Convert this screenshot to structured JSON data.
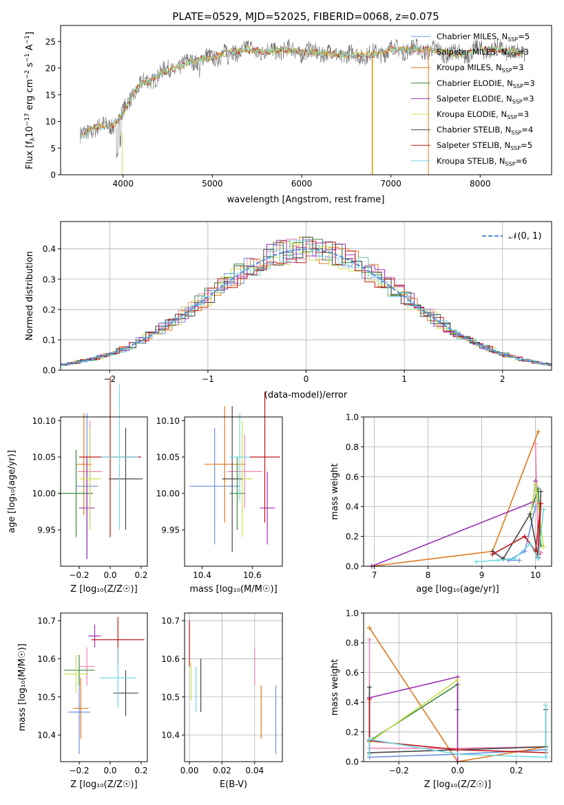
{
  "figure_title": "PLATE=0529, MJD=52025, FIBERID=0068, z=0.075",
  "colors": {
    "Chabrier MILES": "#6a8fe0",
    "Salpeter MILES": "#ee82b8",
    "Kroupa MILES": "#e0781c",
    "Chabrier ELODIE": "#3a8a3a",
    "Salpeter ELODIE": "#9b30b4",
    "Kroupa ELODIE": "#c8e050",
    "Chabrier STELIB": "#444444",
    "Salpeter STELIB": "#c01414",
    "Kroupa STELIB": "#70d8e0",
    "normal": "#5b8fd6"
  },
  "chart_data": [
    {
      "id": "spectrum",
      "type": "line",
      "title": "PLATE=0529, MJD=52025, FIBERID=0068, z=0.075",
      "xlabel": "wavelength [Angstrom, rest frame]",
      "ylabel_main": "Flux [f",
      "ylabel_sub": "λ",
      "ylabel_rest": "10",
      "ylabel_exp1": "−17",
      "ylabel_mid": " erg cm",
      "ylabel_exp2": "−2",
      "ylabel_mid2": " s",
      "ylabel_exp3": "−1",
      "ylabel_mid3": " A",
      "ylabel_exp4": "−1",
      "ylabel_end": "]",
      "xlim": [
        3300,
        8800
      ],
      "ylim": [
        0,
        28
      ],
      "xticks": [
        4000,
        5000,
        6000,
        7000,
        8000
      ],
      "yticks": [
        0,
        5,
        10,
        15,
        20,
        25
      ],
      "envelope_x": [
        3520,
        3600,
        3700,
        3800,
        3900,
        4000,
        4100,
        4200,
        4300,
        4400,
        4600,
        4800,
        5000,
        5200,
        5400,
        5600,
        5800,
        6000,
        6200,
        6400,
        6600,
        6800,
        7000,
        7200,
        7400,
        7600,
        7800,
        8000,
        8200,
        8400,
        8500
      ],
      "envelope_y": [
        7,
        8,
        9,
        9,
        9.5,
        11.5,
        15,
        17,
        17.5,
        19,
        20,
        21.5,
        22,
        23,
        23.5,
        23,
        23.5,
        23,
        23,
        22.5,
        22.5,
        22.5,
        23.5,
        23.5,
        23.5,
        23,
        22.5,
        23.5,
        23.5,
        23,
        22.5
      ],
      "legend": [
        {
          "pre": "Chabrier MILES, N",
          "sub": "SSP",
          "post": "=5"
        },
        {
          "pre": "Salpeter MILES, N",
          "sub": "SSP",
          "post": "=3"
        },
        {
          "pre": "Kroupa MILES, N",
          "sub": "SSP",
          "post": "=3"
        },
        {
          "pre": "Chabrier ELODIE, N",
          "sub": "SSP",
          "post": "=3"
        },
        {
          "pre": "Salpeter ELODIE, N",
          "sub": "SSP",
          "post": "=3"
        },
        {
          "pre": "Kroupa ELODIE, N",
          "sub": "SSP",
          "post": "=3"
        },
        {
          "pre": "Chabrier STELIB, N",
          "sub": "SSP",
          "post": "=4"
        },
        {
          "pre": "Salpeter STELIB, N",
          "sub": "SSP",
          "post": "=5"
        },
        {
          "pre": "Kroupa STELIB, N",
          "sub": "SSP",
          "post": "=6"
        }
      ]
    },
    {
      "id": "residuals",
      "type": "line",
      "xlabel": "(data-model)/error",
      "ylabel": "Normed distribution",
      "xlim": [
        -2.5,
        2.5
      ],
      "ylim": [
        0,
        0.49
      ],
      "xticks": [
        -2,
        -1,
        0,
        1,
        2
      ],
      "yticks": [
        0.0,
        0.1,
        0.2,
        0.3,
        0.4
      ],
      "grid": true,
      "legend_label": "𝒩(0, 1)",
      "legend_placement": "top-right",
      "bin_width": 0.1
    },
    {
      "id": "age_vs_Z",
      "type": "scatter",
      "xlabel": "Z [log₁₀(Z/Z☉)]",
      "ylabel": "age  [log₁₀(age/yr)]",
      "xlim": [
        -0.32,
        0.24
      ],
      "ylim": [
        9.9,
        10.105
      ],
      "xticks": [
        -0.2,
        0.0,
        0.2
      ],
      "yticks": [
        9.95,
        10.0,
        10.05,
        10.1
      ],
      "points": [
        {
          "model": "Chabrier MILES",
          "x": -0.15,
          "xerr": 0.07,
          "y": 10.01,
          "yerr": 0.1
        },
        {
          "model": "Salpeter MILES",
          "x": -0.13,
          "xerr": 0.08,
          "y": 10.03,
          "yerr": 0.07
        },
        {
          "model": "Kroupa MILES",
          "x": -0.17,
          "xerr": 0.05,
          "y": 10.04,
          "yerr": 0.07
        },
        {
          "model": "Chabrier ELODIE",
          "x": -0.22,
          "xerr": 0.11,
          "y": 10.0,
          "yerr": 0.06
        },
        {
          "model": "Salpeter ELODIE",
          "x": -0.15,
          "xerr": 0.05,
          "y": 9.98,
          "yerr": 0.07
        },
        {
          "model": "Kroupa ELODIE",
          "x": -0.13,
          "xerr": 0.07,
          "y": 10.02,
          "yerr": 0.07
        },
        {
          "model": "Chabrier STELIB",
          "x": 0.1,
          "xerr": 0.11,
          "y": 10.02,
          "yerr": 0.07
        },
        {
          "model": "Salpeter STELIB",
          "x": 0.0,
          "xerr": 0.2,
          "y": 10.05,
          "yerr": 0.11
        },
        {
          "model": "Kroupa STELIB",
          "x": 0.06,
          "xerr": 0.12,
          "y": 10.05,
          "yerr": 0.1
        }
      ]
    },
    {
      "id": "age_vs_mass",
      "type": "scatter",
      "xlabel": "mass [log₁₀(M/M☉)]",
      "xlim": [
        10.33,
        10.72
      ],
      "ylim": [
        9.9,
        10.105
      ],
      "xticks": [
        10.4,
        10.6
      ],
      "yticks": [
        9.95,
        10.0,
        10.05,
        10.1
      ],
      "points": [
        {
          "model": "Chabrier MILES",
          "x": 10.45,
          "xerr": 0.1,
          "y": 10.01,
          "yerr": 0.08
        },
        {
          "model": "Salpeter MILES",
          "x": 10.57,
          "xerr": 0.07,
          "y": 10.03,
          "yerr": 0.05
        },
        {
          "model": "Kroupa MILES",
          "x": 10.49,
          "xerr": 0.08,
          "y": 10.04,
          "yerr": 0.08
        },
        {
          "model": "Chabrier ELODIE",
          "x": 10.54,
          "xerr": 0.03,
          "y": 10.0,
          "yerr": 0.05
        },
        {
          "model": "Salpeter ELODIE",
          "x": 10.66,
          "xerr": 0.03,
          "y": 9.98,
          "yerr": 0.05
        },
        {
          "model": "Kroupa ELODIE",
          "x": 10.56,
          "xerr": 0.04,
          "y": 10.02,
          "yerr": 0.08
        },
        {
          "model": "Chabrier STELIB",
          "x": 10.52,
          "xerr": 0.04,
          "y": 10.02,
          "yerr": 0.1
        },
        {
          "model": "Salpeter STELIB",
          "x": 10.65,
          "xerr": 0.06,
          "y": 10.05,
          "yerr": 0.09
        },
        {
          "model": "Kroupa STELIB",
          "x": 10.55,
          "xerr": 0.04,
          "y": 10.05,
          "yerr": 0.06
        }
      ]
    },
    {
      "id": "weight_vs_age",
      "type": "line",
      "xlabel": "age  [log₁₀(age/yr)]",
      "ylabel": "mass weight",
      "xlim": [
        6.8,
        10.3
      ],
      "ylim": [
        0,
        1
      ],
      "xticks": [
        7,
        8,
        9,
        10
      ],
      "yticks": [
        0.0,
        0.2,
        0.4,
        0.6,
        0.8,
        1.0
      ],
      "grid": true,
      "series": [
        {
          "model": "Chabrier MILES",
          "x": [
            9.7,
            9.5,
            9.8,
            10.0
          ],
          "y": [
            0.04,
            0.04,
            0.1,
            0.4
          ]
        },
        {
          "model": "Salpeter MILES",
          "x": [
            10.0,
            10.05,
            10.1
          ],
          "y": [
            0.82,
            0.1,
            0.09
          ]
        },
        {
          "model": "Kroupa MILES",
          "x": [
            6.95,
            9.2,
            10.05
          ],
          "y": [
            0.0,
            0.1,
            0.9
          ]
        },
        {
          "model": "Chabrier ELODIE",
          "x": [
            9.9,
            10.05,
            10.1
          ],
          "y": [
            0.35,
            0.52,
            0.14
          ]
        },
        {
          "model": "Salpeter ELODIE",
          "x": [
            6.95,
            9.95,
            10.0
          ],
          "y": [
            0.0,
            0.43,
            0.57
          ]
        },
        {
          "model": "Kroupa ELODIE",
          "x": [
            9.9,
            10.0,
            10.15
          ],
          "y": [
            0.33,
            0.55,
            0.13
          ]
        },
        {
          "model": "Chabrier STELIB",
          "x": [
            9.2,
            9.4,
            9.9,
            10.05,
            10.1
          ],
          "y": [
            0.1,
            0.05,
            0.35,
            0.06,
            0.5
          ]
        },
        {
          "model": "Salpeter STELIB",
          "x": [
            9.2,
            9.8,
            10.0,
            10.1,
            10.05
          ],
          "y": [
            0.08,
            0.2,
            0.1,
            0.42,
            0.08
          ]
        },
        {
          "model": "Kroupa STELIB",
          "x": [
            8.9,
            9.3,
            9.6,
            9.9,
            10.05,
            10.15
          ],
          "y": [
            0.03,
            0.04,
            0.05,
            0.15,
            0.05,
            0.38
          ]
        }
      ]
    },
    {
      "id": "mass_vs_Z",
      "type": "scatter",
      "xlabel": "Z [log₁₀(Z/Z☉)]",
      "ylabel": "mass [log₁₀(M/M☉)]",
      "xlim": [
        -0.32,
        0.24
      ],
      "ylim": [
        10.33,
        10.72
      ],
      "xticks": [
        -0.2,
        0.0,
        0.2
      ],
      "yticks": [
        10.4,
        10.5,
        10.6,
        10.7
      ],
      "points": [
        {
          "model": "Chabrier MILES",
          "x": -0.2,
          "xerr": 0.07,
          "y": 10.46,
          "yerr": 0.11
        },
        {
          "model": "Salpeter MILES",
          "x": -0.15,
          "xerr": 0.05,
          "y": 10.58,
          "yerr": 0.05
        },
        {
          "model": "Kroupa MILES",
          "x": -0.19,
          "xerr": 0.05,
          "y": 10.47,
          "yerr": 0.08
        },
        {
          "model": "Chabrier ELODIE",
          "x": -0.2,
          "xerr": 0.1,
          "y": 10.57,
          "yerr": 0.04
        },
        {
          "model": "Salpeter ELODIE",
          "x": -0.1,
          "xerr": 0.04,
          "y": 10.66,
          "yerr": 0.03
        },
        {
          "model": "Kroupa ELODIE",
          "x": -0.22,
          "xerr": 0.08,
          "y": 10.56,
          "yerr": 0.05
        },
        {
          "model": "Chabrier STELIB",
          "x": 0.1,
          "xerr": 0.08,
          "y": 10.51,
          "yerr": 0.06
        },
        {
          "model": "Salpeter STELIB",
          "x": 0.05,
          "xerr": 0.17,
          "y": 10.65,
          "yerr": 0.06
        },
        {
          "model": "Kroupa STELIB",
          "x": 0.05,
          "xerr": 0.12,
          "y": 10.55,
          "yerr": 0.08
        }
      ]
    },
    {
      "id": "mass_vs_ebv",
      "type": "scatter",
      "xlabel": "E(B-V)",
      "xlim": [
        -0.003,
        0.057
      ],
      "ylim": [
        10.33,
        10.72
      ],
      "xticks": [
        0.0,
        0.02,
        0.04
      ],
      "yticks": [
        10.4,
        10.5,
        10.6,
        10.7
      ],
      "grid": true,
      "points": [
        {
          "model": "Chabrier MILES",
          "x": 0.053,
          "y": 10.44,
          "yerr": 0.09
        },
        {
          "model": "Salpeter MILES",
          "x": 0.04,
          "y": 10.58,
          "yerr": 0.05
        },
        {
          "model": "Kroupa MILES",
          "x": 0.044,
          "y": 10.46,
          "yerr": 0.07
        },
        {
          "model": "Salpeter STELIB",
          "x": 0.0,
          "y": 10.64,
          "yerr": 0.06
        },
        {
          "model": "Kroupa ELODIE",
          "x": 0.001,
          "y": 10.54,
          "yerr": 0.05
        },
        {
          "model": "Kroupa STELIB",
          "x": 0.004,
          "y": 10.52,
          "yerr": 0.06
        },
        {
          "model": "Chabrier STELIB",
          "x": 0.007,
          "y": 10.53,
          "yerr": 0.07
        }
      ]
    },
    {
      "id": "weight_vs_Z",
      "type": "line",
      "xlabel": "Z [log₁₀(Z/Z☉)]",
      "ylabel": "mass weight",
      "xlim": [
        -0.32,
        0.32
      ],
      "ylim": [
        0,
        1
      ],
      "xticks": [
        -0.2,
        0.0,
        0.2
      ],
      "yticks": [
        0.0,
        0.2,
        0.4,
        0.6,
        0.8,
        1.0
      ],
      "grid": true,
      "series": [
        {
          "model": "Chabrier MILES",
          "x": [
            -0.3,
            0.0,
            0.3
          ],
          "y": [
            0.03,
            0.05,
            0.08
          ]
        },
        {
          "model": "Salpeter MILES",
          "x": [
            -0.3,
            -0.3,
            0.0,
            0.3
          ],
          "y": [
            0.82,
            0.09,
            0.09,
            0.1
          ]
        },
        {
          "model": "Kroupa MILES",
          "x": [
            -0.3,
            0.0,
            0.3
          ],
          "y": [
            0.9,
            0.0,
            0.1
          ]
        },
        {
          "model": "Chabrier ELODIE",
          "x": [
            -0.3,
            0.0,
            0.0
          ],
          "y": [
            0.14,
            0.52,
            0.35
          ]
        },
        {
          "model": "Salpeter ELODIE",
          "x": [
            -0.3,
            0.0,
            0.0
          ],
          "y": [
            0.43,
            0.57,
            0.0
          ]
        },
        {
          "model": "Kroupa ELODIE",
          "x": [
            -0.3,
            0.0
          ],
          "y": [
            0.13,
            0.55
          ]
        },
        {
          "model": "Chabrier STELIB",
          "x": [
            -0.3,
            -0.3,
            0.3,
            0.3
          ],
          "y": [
            0.5,
            0.06,
            0.1,
            0.35
          ]
        },
        {
          "model": "Salpeter STELIB",
          "x": [
            -0.3,
            -0.3,
            0.0,
            0.3
          ],
          "y": [
            0.42,
            0.14,
            0.08,
            0.06
          ]
        },
        {
          "model": "Kroupa STELIB",
          "x": [
            -0.3,
            -0.3,
            0.0,
            0.3,
            0.3
          ],
          "y": [
            0.05,
            0.15,
            0.05,
            0.03,
            0.38
          ]
        }
      ]
    }
  ]
}
